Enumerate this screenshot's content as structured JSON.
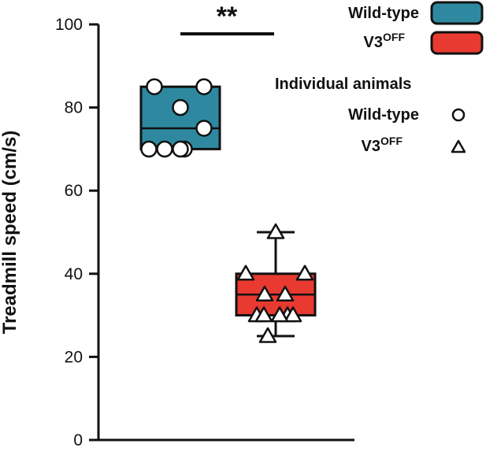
{
  "chart_data": {
    "type": "box",
    "ylabel": "Treadmill speed (cm/s)",
    "ylim": [
      0,
      100
    ],
    "yticks": [
      0,
      20,
      40,
      60,
      80,
      100
    ],
    "series": [
      {
        "name": "Wild-type",
        "color": "#2e89a0",
        "box": {
          "min": 70,
          "q1": 70,
          "median": 75,
          "q3": 85,
          "max": 85
        },
        "points": [
          85,
          85,
          80,
          75,
          70,
          70,
          70,
          70
        ],
        "marker": "circle"
      },
      {
        "name": "V3",
        "name_superscript": "OFF",
        "color": "#e83a30",
        "box": {
          "min": 25,
          "q1": 30,
          "median": 35,
          "q3": 40,
          "max": 50
        },
        "points": [
          50,
          40,
          40,
          35,
          35,
          30,
          30,
          30,
          30,
          30,
          25
        ],
        "marker": "triangle"
      }
    ],
    "significance": {
      "label": "**"
    },
    "legend": {
      "placement": "top-right",
      "individual_title": "Individual animals"
    }
  }
}
